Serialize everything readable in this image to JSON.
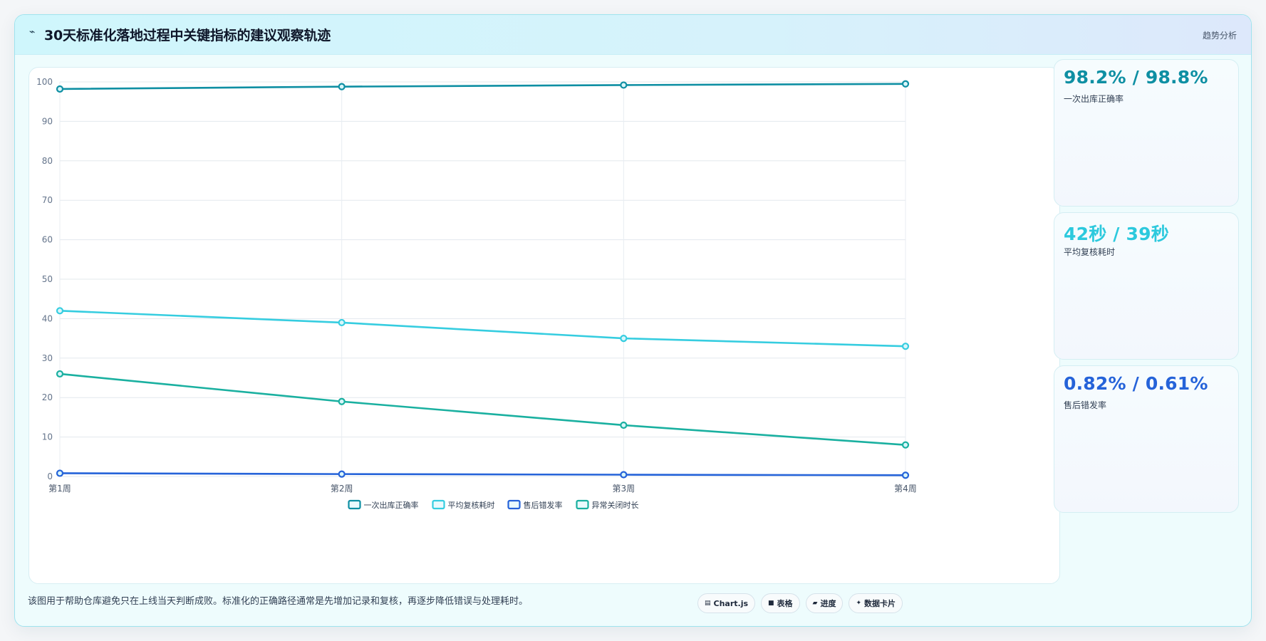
{
  "header": {
    "title": "30天标准化落地过程中关键指标的建议观察轨迹",
    "tag": "趋势分析",
    "icon": "activity-icon"
  },
  "chart_data": {
    "type": "line",
    "categories": [
      "第1周",
      "第2周",
      "第3周",
      "第4周"
    ],
    "ylim": [
      0,
      100
    ],
    "yticks": [
      0,
      10,
      20,
      30,
      40,
      50,
      60,
      70,
      80,
      90,
      100
    ],
    "grid": true,
    "legend_position": "bottom",
    "series": [
      {
        "name": "一次出库正确率",
        "values": [
          98.2,
          98.8,
          99.2,
          99.5
        ],
        "color": "#0e8fa3"
      },
      {
        "name": "平均复核耗时",
        "values": [
          42,
          39,
          35,
          33
        ],
        "color": "#36cde0"
      },
      {
        "name": "售后错发率",
        "values": [
          0.82,
          0.61,
          0.45,
          0.32
        ],
        "color": "#2563d9"
      },
      {
        "name": "异常关闭时长",
        "values": [
          26,
          19,
          13,
          8
        ],
        "color": "#1ab0a0"
      }
    ]
  },
  "kpis": [
    {
      "value": "98.2% / 98.8%",
      "label": "一次出库正确率",
      "color": "#0e8fa3"
    },
    {
      "value": "42秒 / 39秒",
      "label": "平均复核耗时",
      "color": "#2cc9dd"
    },
    {
      "value": "0.82% / 0.61%",
      "label": "售后错发率",
      "color": "#2563d9"
    }
  ],
  "footer": {
    "note": "该图用于帮助仓库避免只在上线当天判断成败。标准化的正确路径通常是先增加记录和复核，再逐步降低错误与处理耗时。",
    "pills": [
      {
        "icon": "chart-icon",
        "glyph": "▤",
        "label": "Chart.js"
      },
      {
        "icon": "table-icon",
        "glyph": "■",
        "label": "表格"
      },
      {
        "icon": "progress-icon",
        "glyph": "▰",
        "label": "进度"
      },
      {
        "icon": "card-icon",
        "glyph": "✦",
        "label": "数据卡片"
      }
    ]
  }
}
